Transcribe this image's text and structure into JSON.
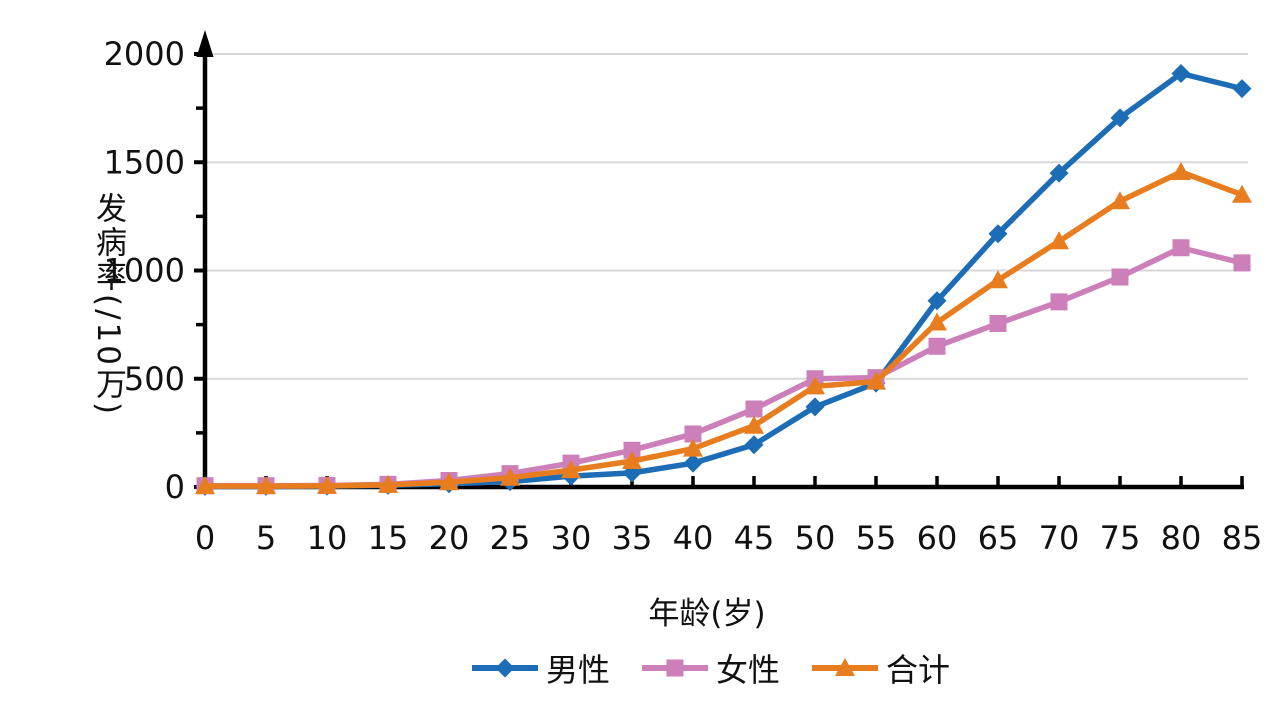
{
  "chart_data": {
    "type": "line",
    "title": "",
    "xlabel": "年龄(岁)",
    "ylabel": "发病率(/10万)",
    "x": [
      0,
      5,
      10,
      15,
      20,
      25,
      30,
      35,
      40,
      45,
      50,
      55,
      60,
      65,
      70,
      75,
      80,
      85
    ],
    "xlim": [
      0,
      85
    ],
    "ylim": [
      0,
      2000
    ],
    "yticks": [
      0,
      500,
      1000,
      1500,
      2000
    ],
    "y_minor_ticks": [
      250,
      750,
      1250,
      1750
    ],
    "grid": "horizontal-major-only",
    "legend_position": "bottom-center",
    "series": [
      {
        "key": "male",
        "name": "男性",
        "marker": "diamond",
        "color": "#1c6db6",
        "values": [
          3,
          3,
          4,
          8,
          15,
          25,
          50,
          65,
          110,
          195,
          370,
          480,
          860,
          1170,
          1450,
          1705,
          1910,
          1840
        ]
      },
      {
        "key": "female",
        "name": "女性",
        "marker": "square",
        "color": "#cc7fb9",
        "values": [
          6,
          6,
          7,
          12,
          30,
          62,
          110,
          170,
          245,
          360,
          500,
          505,
          650,
          755,
          855,
          970,
          1105,
          1035
        ]
      },
      {
        "key": "total",
        "name": "合计",
        "marker": "triangle",
        "color": "#e87d20",
        "values": [
          4,
          4,
          5,
          10,
          22,
          43,
          78,
          120,
          177,
          283,
          465,
          487,
          760,
          955,
          1135,
          1320,
          1455,
          1350
        ]
      }
    ],
    "colors": {
      "grid": "#d8d8d8",
      "axis": "#000000",
      "text": "#111111"
    }
  }
}
